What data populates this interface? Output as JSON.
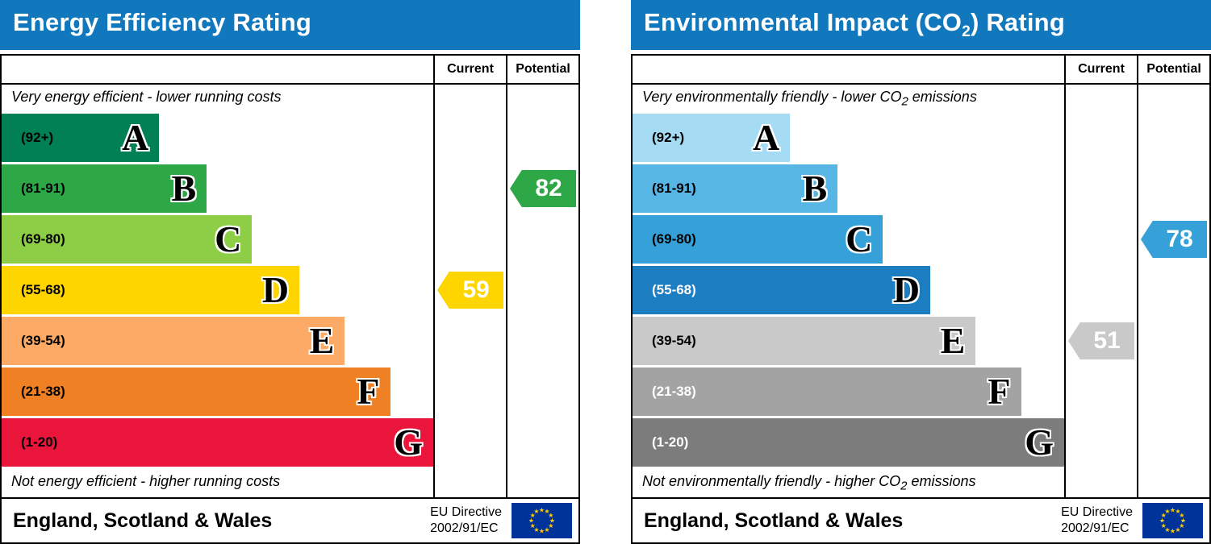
{
  "charts": [
    {
      "title": {
        "pre": "Energy Efficiency Rating",
        "sub": "",
        "post": ""
      },
      "columns": {
        "current": "Current",
        "potential": "Potential"
      },
      "top_note": {
        "pre": "Very energy efficient - lower running costs",
        "sub": "",
        "post": ""
      },
      "bottom_note": {
        "pre": "Not energy efficient - higher running costs",
        "sub": "",
        "post": ""
      },
      "footer": {
        "region": "England, Scotland & Wales",
        "directive_line1": "EU Directive",
        "directive_line2": "2002/91/EC"
      },
      "bands": [
        {
          "letter": "A",
          "range": "(92+)",
          "color": "#008054",
          "range_color": "#000000",
          "width_pct": 36.5
        },
        {
          "letter": "B",
          "range": "(81-91)",
          "color": "#2ea747",
          "range_color": "#000000",
          "width_pct": 47.5
        },
        {
          "letter": "C",
          "range": "(69-80)",
          "color": "#8dce46",
          "range_color": "#000000",
          "width_pct": 58
        },
        {
          "letter": "D",
          "range": "(55-68)",
          "color": "#ffd500",
          "range_color": "#000000",
          "width_pct": 69
        },
        {
          "letter": "E",
          "range": "(39-54)",
          "color": "#fcaa65",
          "range_color": "#000000",
          "width_pct": 79.5
        },
        {
          "letter": "F",
          "range": "(21-38)",
          "color": "#ef8023",
          "range_color": "#000000",
          "width_pct": 90
        },
        {
          "letter": "G",
          "range": "(1-20)",
          "color": "#e9153b",
          "range_color": "#000000",
          "width_pct": 100
        }
      ],
      "current": {
        "value": "59",
        "band_index": 3,
        "color": "#ffd500",
        "text_color": "#ffffff"
      },
      "potential": {
        "value": "82",
        "band_index": 1,
        "color": "#2ea747",
        "text_color": "#ffffff"
      }
    },
    {
      "title": {
        "pre": "Environmental Impact (CO",
        "sub": "2",
        "post": ") Rating"
      },
      "columns": {
        "current": "Current",
        "potential": "Potential"
      },
      "top_note": {
        "pre": "Very environmentally friendly - lower CO",
        "sub": "2",
        "post": " emissions"
      },
      "bottom_note": {
        "pre": "Not environmentally friendly - higher CO",
        "sub": "2",
        "post": " emissions"
      },
      "footer": {
        "region": "England, Scotland & Wales",
        "directive_line1": "EU Directive",
        "directive_line2": "2002/91/EC"
      },
      "bands": [
        {
          "letter": "A",
          "range": "(92+)",
          "color": "#a5dbf3",
          "range_color": "#000000",
          "width_pct": 36.5
        },
        {
          "letter": "B",
          "range": "(81-91)",
          "color": "#58b6e5",
          "range_color": "#000000",
          "width_pct": 47.5
        },
        {
          "letter": "C",
          "range": "(69-80)",
          "color": "#35a1d8",
          "range_color": "#000000",
          "width_pct": 58
        },
        {
          "letter": "D",
          "range": "(55-68)",
          "color": "#1d7dc1",
          "range_color": "#ffffff",
          "width_pct": 69
        },
        {
          "letter": "E",
          "range": "(39-54)",
          "color": "#c9c9c9",
          "range_color": "#000000",
          "width_pct": 79.5
        },
        {
          "letter": "F",
          "range": "(21-38)",
          "color": "#a3a3a3",
          "range_color": "#ffffff",
          "width_pct": 90
        },
        {
          "letter": "G",
          "range": "(1-20)",
          "color": "#7c7c7c",
          "range_color": "#ffffff",
          "width_pct": 100
        }
      ],
      "current": {
        "value": "51",
        "band_index": 4,
        "color": "#c9c9c9",
        "text_color": "#ffffff"
      },
      "potential": {
        "value": "78",
        "band_index": 2,
        "color": "#35a1d8",
        "text_color": "#ffffff"
      }
    }
  ],
  "flag": {
    "background": "#003399",
    "star_color": "#ffcc00",
    "star_count": 12
  },
  "chart_data": [
    {
      "type": "bar",
      "title": "Energy Efficiency Rating",
      "categories": [
        "A (92+)",
        "B (81-91)",
        "C (69-80)",
        "D (55-68)",
        "E (39-54)",
        "F (21-38)",
        "G (1-20)"
      ],
      "values": [
        36.5,
        47.5,
        58,
        69,
        79.5,
        90,
        100
      ],
      "values_unit": "band bar length, % of scale width",
      "band_colors": [
        "#008054",
        "#2ea747",
        "#8dce46",
        "#ffd500",
        "#fcaa65",
        "#ef8023",
        "#e9153b"
      ],
      "current": 59,
      "current_band": "D",
      "potential": 82,
      "potential_band": "B",
      "top_annotation": "Very energy efficient - lower running costs",
      "bottom_annotation": "Not energy efficient - higher running costs",
      "region": "England, Scotland & Wales",
      "directive": "EU Directive 2002/91/EC",
      "legend_position": "none",
      "grid": false
    },
    {
      "type": "bar",
      "title": "Environmental Impact (CO2) Rating",
      "categories": [
        "A (92+)",
        "B (81-91)",
        "C (69-80)",
        "D (55-68)",
        "E (39-54)",
        "F (21-38)",
        "G (1-20)"
      ],
      "values": [
        36.5,
        47.5,
        58,
        69,
        79.5,
        90,
        100
      ],
      "values_unit": "band bar length, % of scale width",
      "band_colors": [
        "#a5dbf3",
        "#58b6e5",
        "#35a1d8",
        "#1d7dc1",
        "#c9c9c9",
        "#a3a3a3",
        "#7c7c7c"
      ],
      "current": 51,
      "current_band": "E",
      "potential": 78,
      "potential_band": "C",
      "top_annotation": "Very environmentally friendly - lower CO2 emissions",
      "bottom_annotation": "Not environmentally friendly - higher CO2 emissions",
      "region": "England, Scotland & Wales",
      "directive": "EU Directive 2002/91/EC",
      "legend_position": "none",
      "grid": false
    }
  ]
}
